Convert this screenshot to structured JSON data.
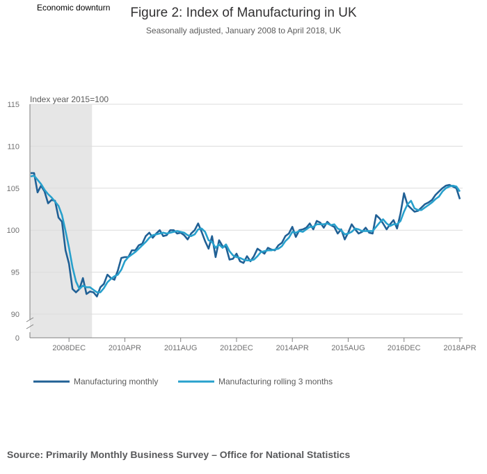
{
  "chart_data": {
    "type": "line",
    "title": "Figure 2: Index of Manufacturing in UK",
    "subtitle": "Seasonally adjusted, January 2008 to April 2018, UK",
    "ylabel": "Index year 2015=100",
    "ylim": [
      90,
      115
    ],
    "y_ticks": [
      "115",
      "110",
      "105",
      "100",
      "95",
      "90"
    ],
    "y_zero_label": "0",
    "x_ticks": [
      "2008DEC",
      "2010APR",
      "2011AUG",
      "2012DEC",
      "2014APR",
      "2015AUG",
      "2016DEC",
      "2018APR"
    ],
    "x_tick_month_index": [
      11,
      27,
      43,
      59,
      75,
      91,
      107,
      123
    ],
    "recession_label": "Economic downturn",
    "recession_month_index": [
      0,
      17
    ],
    "grid": true,
    "legend_position": "bottom-left",
    "colors": {
      "monthly": "#206095",
      "rolling": "#27a0cc",
      "shade": "#e6e6e6"
    },
    "series": [
      {
        "name": "Manufacturing monthly",
        "values": [
          106.8,
          106.8,
          104.5,
          105.3,
          104.6,
          103.2,
          103.6,
          103.5,
          101.5,
          101.0,
          97.6,
          96.0,
          93.0,
          92.6,
          93.0,
          94.3,
          92.4,
          92.7,
          92.6,
          92.1,
          93.2,
          93.6,
          94.7,
          94.3,
          94.1,
          95.2,
          96.7,
          96.8,
          96.8,
          97.6,
          97.6,
          98.2,
          98.4,
          99.3,
          99.7,
          99.1,
          99.6,
          100.0,
          99.3,
          99.4,
          100.0,
          100.0,
          99.6,
          99.7,
          99.4,
          98.9,
          99.6,
          100.0,
          100.8,
          99.8,
          98.7,
          97.8,
          99.3,
          96.8,
          98.8,
          98.1,
          98.0,
          96.5,
          96.6,
          97.2,
          96.3,
          96.1,
          96.9,
          96.3,
          96.9,
          97.8,
          97.5,
          97.2,
          97.9,
          97.7,
          97.6,
          98.2,
          98.5,
          99.3,
          99.6,
          100.4,
          99.2,
          100.0,
          100.1,
          100.3,
          100.8,
          100.1,
          101.1,
          100.9,
          100.3,
          101.0,
          100.6,
          100.4,
          99.6,
          100.1,
          98.9,
          99.7,
          100.7,
          100.1,
          99.6,
          99.8,
          100.3,
          99.7,
          99.6,
          101.8,
          101.4,
          100.8,
          100.1,
          100.7,
          101.2,
          100.2,
          102.0,
          104.4,
          103.0,
          102.6,
          102.2,
          102.3,
          102.7,
          103.1,
          103.3,
          103.6,
          104.2,
          104.6,
          105.0,
          105.3,
          105.4,
          105.2,
          105.0,
          103.7
        ]
      },
      {
        "name": "Manufacturing rolling 3 months",
        "values": [
          106.4,
          106.5,
          106.0,
          105.5,
          104.8,
          104.3,
          103.9,
          103.4,
          102.9,
          101.8,
          99.9,
          97.9,
          95.6,
          93.9,
          93.0,
          93.4,
          93.2,
          93.2,
          92.9,
          92.6,
          92.6,
          93.1,
          93.8,
          94.2,
          94.5,
          94.7,
          95.3,
          96.3,
          96.8,
          97.1,
          97.4,
          97.8,
          98.2,
          98.6,
          99.1,
          99.4,
          99.5,
          99.6,
          99.7,
          99.6,
          99.7,
          99.8,
          99.9,
          99.8,
          99.7,
          99.4,
          99.3,
          99.5,
          100.1,
          100.2,
          99.8,
          98.8,
          98.6,
          97.9,
          98.3,
          97.9,
          98.3,
          97.5,
          97.0,
          96.8,
          96.7,
          96.5,
          96.4,
          96.4,
          96.5,
          96.9,
          97.4,
          97.5,
          97.6,
          97.6,
          97.7,
          97.8,
          98.1,
          98.7,
          99.1,
          99.8,
          99.7,
          99.9,
          99.8,
          100.1,
          100.4,
          100.4,
          100.7,
          100.7,
          100.7,
          100.8,
          100.6,
          100.7,
          100.2,
          100.0,
          99.5,
          99.6,
          99.8,
          100.2,
          100.1,
          99.9,
          99.9,
          99.9,
          99.9,
          100.4,
          100.9,
          101.3,
          100.8,
          100.5,
          100.7,
          100.7,
          101.1,
          102.2,
          103.1,
          103.5,
          102.6,
          102.4,
          102.4,
          102.7,
          103.0,
          103.3,
          103.7,
          104.0,
          104.6,
          105.0,
          105.2,
          105.3,
          105.2,
          104.6
        ]
      }
    ]
  },
  "source": "Source: Primarily Monthly Business Survey – Office for National Statistics"
}
